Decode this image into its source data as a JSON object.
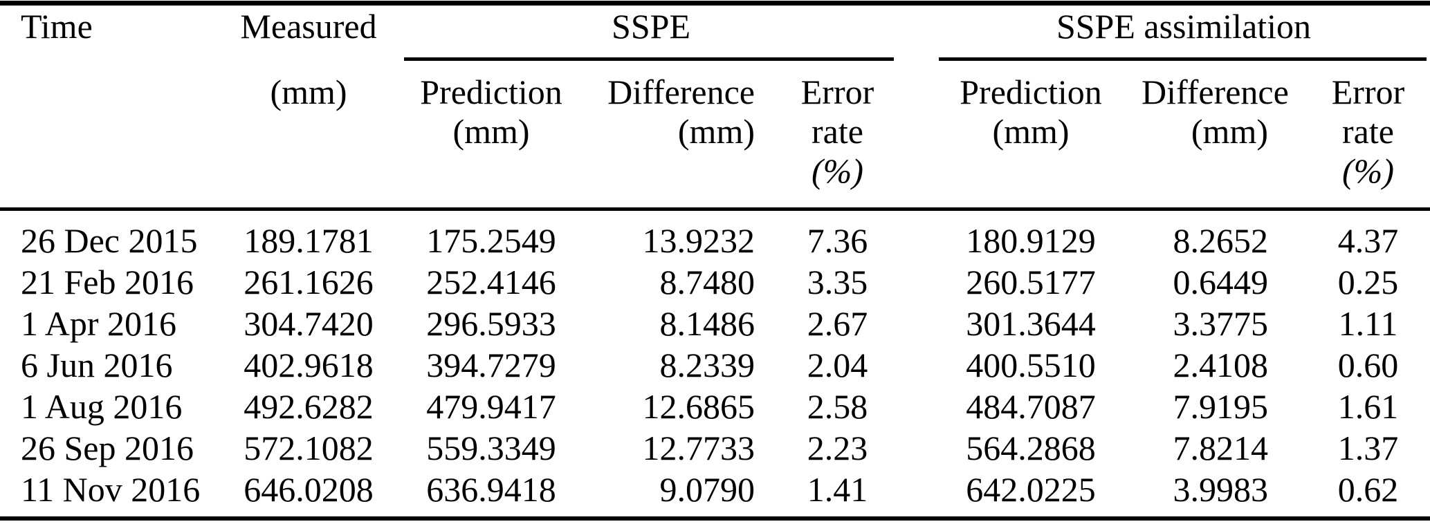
{
  "page": {
    "background": "#ffffff",
    "text_color": "#000000",
    "rule_color": "#000000"
  },
  "table": {
    "header": {
      "time": "Time",
      "measured": "Measured",
      "measured_unit": "(mm)",
      "groups": [
        {
          "label": "SSPE"
        },
        {
          "label": "SSPE assimilation"
        }
      ],
      "subcols": {
        "prediction": [
          "Prediction",
          "(mm)"
        ],
        "difference": [
          "Difference",
          "(mm)"
        ],
        "error": [
          "Error",
          "rate",
          "(%)"
        ]
      }
    },
    "rows": [
      {
        "time": "26 Dec 2015",
        "measured": "189.1781",
        "sspe_prediction": "175.2549",
        "sspe_difference": "13.9232",
        "sspe_error": "7.36",
        "assim_prediction": "180.9129",
        "assim_difference": "8.2652",
        "assim_error": "4.37"
      },
      {
        "time": "21 Feb 2016",
        "measured": "261.1626",
        "sspe_prediction": "252.4146",
        "sspe_difference": "8.7480",
        "sspe_error": "3.35",
        "assim_prediction": "260.5177",
        "assim_difference": "0.6449",
        "assim_error": "0.25"
      },
      {
        "time": "1 Apr 2016",
        "measured": "304.7420",
        "sspe_prediction": "296.5933",
        "sspe_difference": "8.1486",
        "sspe_error": "2.67",
        "assim_prediction": "301.3644",
        "assim_difference": "3.3775",
        "assim_error": "1.11"
      },
      {
        "time": "6 Jun 2016",
        "measured": "402.9618",
        "sspe_prediction": "394.7279",
        "sspe_difference": "8.2339",
        "sspe_error": "2.04",
        "assim_prediction": "400.5510",
        "assim_difference": "2.4108",
        "assim_error": "0.60"
      },
      {
        "time": "1 Aug 2016",
        "measured": "492.6282",
        "sspe_prediction": "479.9417",
        "sspe_difference": "12.6865",
        "sspe_error": "2.58",
        "assim_prediction": "484.7087",
        "assim_difference": "7.9195",
        "assim_error": "1.61"
      },
      {
        "time": "26 Sep 2016",
        "measured": "572.1082",
        "sspe_prediction": "559.3349",
        "sspe_difference": "12.7733",
        "sspe_error": "2.23",
        "assim_prediction": "564.2868",
        "assim_difference": "7.8214",
        "assim_error": "1.37"
      },
      {
        "time": "11 Nov 2016",
        "measured": "646.0208",
        "sspe_prediction": "636.9418",
        "sspe_difference": "9.0790",
        "sspe_error": "1.41",
        "assim_prediction": "642.0225",
        "assim_difference": "3.9983",
        "assim_error": "0.62"
      }
    ]
  }
}
